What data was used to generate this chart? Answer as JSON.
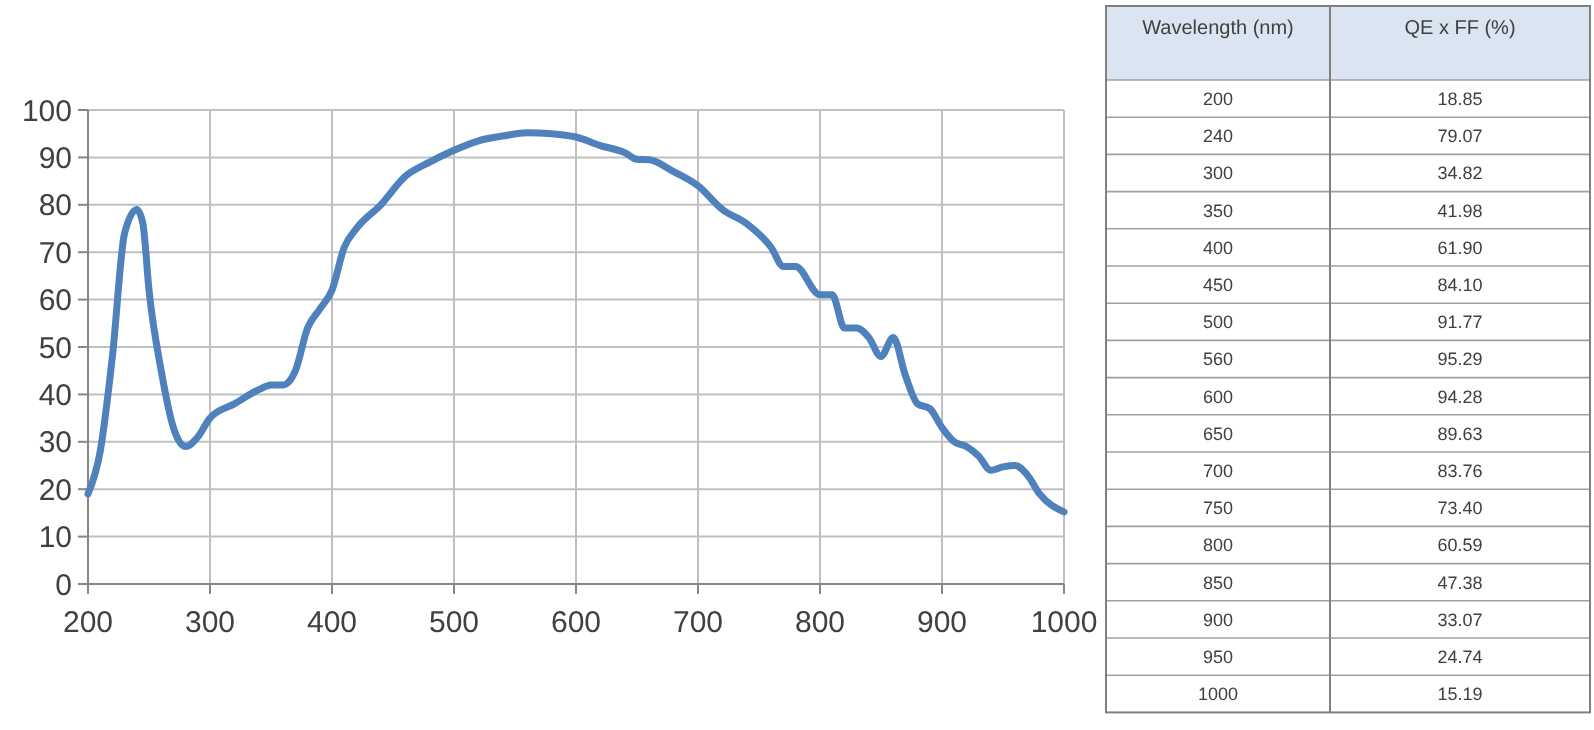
{
  "chart_data": [
    {
      "type": "line",
      "x": [
        200,
        210,
        220,
        230,
        240,
        245,
        250,
        260,
        270,
        280,
        290,
        300,
        320,
        340,
        350,
        360,
        370,
        380,
        390,
        400,
        410,
        420,
        440,
        460,
        480,
        500,
        520,
        540,
        560,
        580,
        600,
        620,
        640,
        650,
        660,
        680,
        700,
        720,
        740,
        760,
        770,
        780,
        800,
        810,
        820,
        830,
        840,
        850,
        860,
        870,
        880,
        890,
        900,
        910,
        920,
        930,
        940,
        950,
        960,
        970,
        980,
        1000
      ],
      "series": [
        {
          "color": "#4f81bd",
          "values": [
            19,
            28,
            48,
            74,
            79,
            76,
            62,
            45,
            33,
            29,
            31,
            35,
            38,
            41,
            42,
            42,
            45,
            54,
            58,
            62,
            71,
            75,
            80,
            86,
            89,
            91.5,
            93.5,
            94.5,
            95.2,
            95,
            94.3,
            92.5,
            91,
            89.6,
            89.5,
            87,
            84,
            79,
            76,
            71,
            67,
            67,
            61,
            61,
            54,
            54,
            52,
            48,
            52,
            44,
            38,
            37,
            33,
            30,
            29,
            27,
            24,
            24.7,
            25,
            23,
            19,
            15.2
          ]
        }
      ],
      "xlim": [
        200,
        1000
      ],
      "xticks": [
        200,
        300,
        400,
        500,
        600,
        700,
        800,
        900,
        1000
      ],
      "ylim": [
        0,
        100
      ],
      "yticks": [
        0,
        10,
        20,
        30,
        40,
        50,
        60,
        70,
        80,
        90,
        100
      ],
      "grid": true,
      "marker": "none",
      "line_style": "solid"
    },
    {
      "type": "other",
      "xlabel": "Wavelength (nm)",
      "ylabel": "QE x FF (%)",
      "categories": [
        "200",
        "240",
        "300",
        "350",
        "400",
        "450",
        "500",
        "560",
        "600",
        "650",
        "700",
        "750",
        "800",
        "850",
        "900",
        "950",
        "1000"
      ],
      "value_labels": [
        "18.85",
        "79.07",
        "34.82",
        "41.98",
        "61.90",
        "84.10",
        "91.77",
        "95.29",
        "94.28",
        "89.63",
        "83.76",
        "73.40",
        "60.59",
        "47.38",
        "33.07",
        "24.74",
        "15.19"
      ]
    }
  ]
}
